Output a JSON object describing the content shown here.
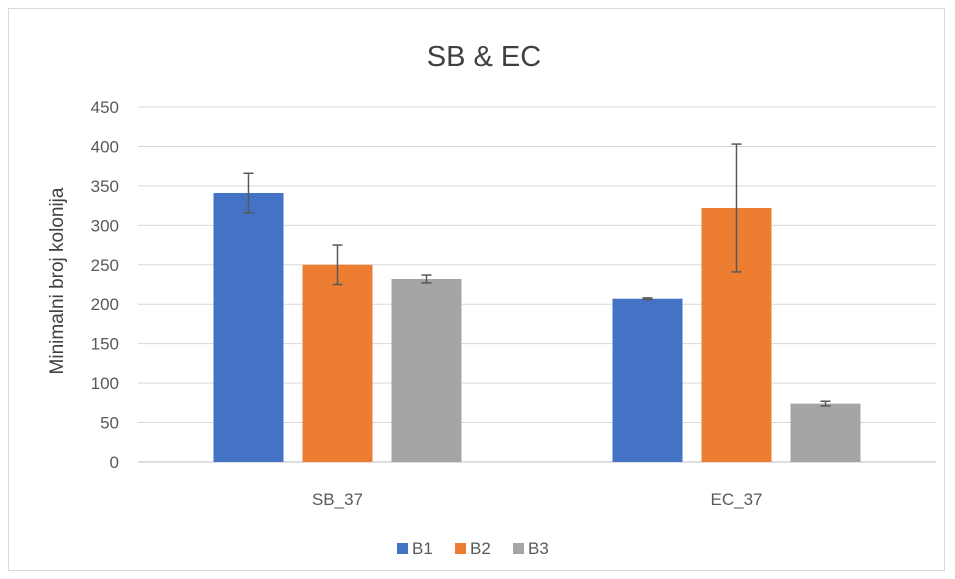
{
  "chart_data": {
    "type": "bar",
    "title": "SB & EC",
    "xlabel": "",
    "ylabel": "Minimalni broj kolonija",
    "categories": [
      "SB_37",
      "EC_37"
    ],
    "ylim": [
      0,
      450
    ],
    "yticks": [
      0,
      50,
      100,
      150,
      200,
      250,
      300,
      350,
      400,
      450
    ],
    "grid": true,
    "legend_position": "bottom",
    "series": [
      {
        "name": "B1",
        "color": "#4472c4",
        "values": [
          341,
          207
        ],
        "errors": [
          25,
          1
        ]
      },
      {
        "name": "B2",
        "color": "#ed7d31",
        "values": [
          250,
          322
        ],
        "errors": [
          25,
          81
        ]
      },
      {
        "name": "B3",
        "color": "#a5a5a5",
        "values": [
          232,
          74
        ],
        "errors": [
          5,
          3
        ]
      }
    ]
  }
}
